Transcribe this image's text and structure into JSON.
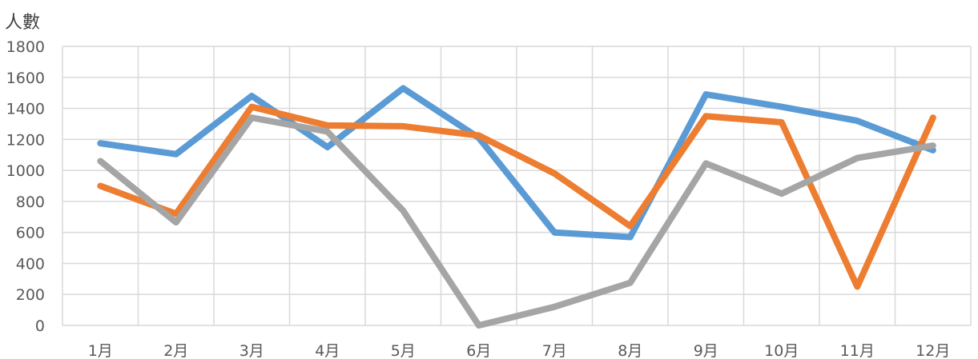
{
  "chart_data": {
    "type": "line",
    "ylabel": "人數",
    "xlabel": "",
    "title": "",
    "categories": [
      "1月",
      "2月",
      "3月",
      "4月",
      "5月",
      "6月",
      "7月",
      "8月",
      "9月",
      "10月",
      "11月",
      "12月"
    ],
    "ylim": [
      0,
      1800
    ],
    "yticks": [
      0,
      200,
      400,
      600,
      800,
      1000,
      1200,
      1400,
      1600,
      1800
    ],
    "yticklabels": [
      "0",
      "200",
      "400",
      "600",
      "800",
      "1000",
      "1200",
      "1400",
      "1600",
      "1800"
    ],
    "grid": true,
    "series": [
      {
        "color": "#5B9BD5",
        "values": [
          1175,
          1105,
          1480,
          1150,
          1530,
          1210,
          600,
          570,
          1490,
          1410,
          1320,
          1130
        ]
      },
      {
        "color": "#ED7D31",
        "values": [
          900,
          720,
          1410,
          1290,
          1285,
          1225,
          980,
          640,
          1350,
          1310,
          250,
          1340
        ]
      },
      {
        "color": "#A5A5A5",
        "values": [
          1060,
          665,
          1340,
          1250,
          740,
          0,
          120,
          275,
          1045,
          850,
          1080,
          1160
        ]
      }
    ]
  }
}
